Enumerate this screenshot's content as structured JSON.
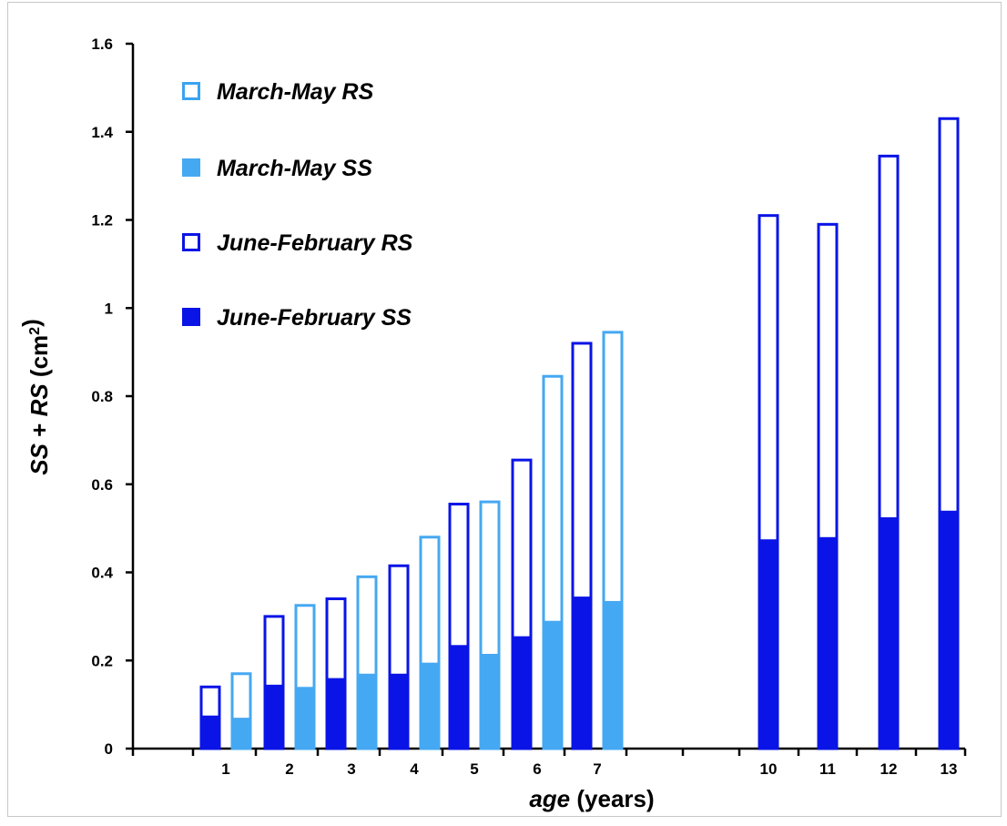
{
  "chart_data": {
    "type": "bar",
    "stacked": true,
    "ylabel": {
      "parts": [
        {
          "text": "SS",
          "italic": true
        },
        {
          "text": " + ",
          "italic": false
        },
        {
          "text": "RS",
          "italic": true
        },
        {
          "text": " (cm",
          "italic": false
        },
        {
          "text": "2",
          "italic": false,
          "sup": true
        },
        {
          "text": ")",
          "italic": false
        }
      ]
    },
    "xlabel": {
      "parts": [
        {
          "text": "age",
          "italic": true
        },
        {
          "text": " (years)",
          "italic": false
        }
      ]
    },
    "ylim": [
      0,
      1.6
    ],
    "yticks": [
      "0",
      "0.2",
      "0.4",
      "0.6",
      "0.8",
      "1",
      "1.2",
      "1.4",
      "1.6"
    ],
    "xticks": [
      "1",
      "2",
      "3",
      "4",
      "5",
      "6",
      "7",
      "10",
      "11",
      "12",
      "13"
    ],
    "legend_position": "top-left",
    "legend": [
      {
        "label": "March-May RS",
        "style": "outline",
        "color": "#3ba3f0"
      },
      {
        "label": "March-May SS",
        "style": "filled",
        "color": "#45a8f2"
      },
      {
        "label": "June-February RS",
        "style": "outline",
        "color": "#0a14e6"
      },
      {
        "label": "June-February SS",
        "style": "filled",
        "color": "#0a14e6"
      }
    ],
    "colors": {
      "march_may": "#45a8f2",
      "june_february": "#0a14e6"
    },
    "bars": [
      {
        "age": 1,
        "period": "June-February",
        "SS": 0.075,
        "total": 0.14
      },
      {
        "age": 1,
        "period": "March-May",
        "SS": 0.07,
        "total": 0.17
      },
      {
        "age": 2,
        "period": "June-February",
        "SS": 0.145,
        "total": 0.3
      },
      {
        "age": 2,
        "period": "March-May",
        "SS": 0.14,
        "total": 0.325
      },
      {
        "age": 3,
        "period": "June-February",
        "SS": 0.16,
        "total": 0.34
      },
      {
        "age": 3,
        "period": "March-May",
        "SS": 0.17,
        "total": 0.39
      },
      {
        "age": 4,
        "period": "June-February",
        "SS": 0.17,
        "total": 0.415
      },
      {
        "age": 4,
        "period": "March-May",
        "SS": 0.195,
        "total": 0.48
      },
      {
        "age": 5,
        "period": "June-February",
        "SS": 0.235,
        "total": 0.555
      },
      {
        "age": 5,
        "period": "March-May",
        "SS": 0.215,
        "total": 0.56
      },
      {
        "age": 6,
        "period": "June-February",
        "SS": 0.255,
        "total": 0.655
      },
      {
        "age": 6,
        "period": "March-May",
        "SS": 0.29,
        "total": 0.845
      },
      {
        "age": 7,
        "period": "June-February",
        "SS": 0.345,
        "total": 0.92
      },
      {
        "age": 7,
        "period": "March-May",
        "SS": 0.335,
        "total": 0.945
      },
      {
        "age": 10,
        "period": "June-February",
        "SS": 0.475,
        "total": 1.21
      },
      {
        "age": 11,
        "period": "June-February",
        "SS": 0.48,
        "total": 1.19
      },
      {
        "age": 12,
        "period": "June-February",
        "SS": 0.525,
        "total": 1.345
      },
      {
        "age": 13,
        "period": "June-February",
        "SS": 0.54,
        "total": 1.43
      }
    ]
  }
}
